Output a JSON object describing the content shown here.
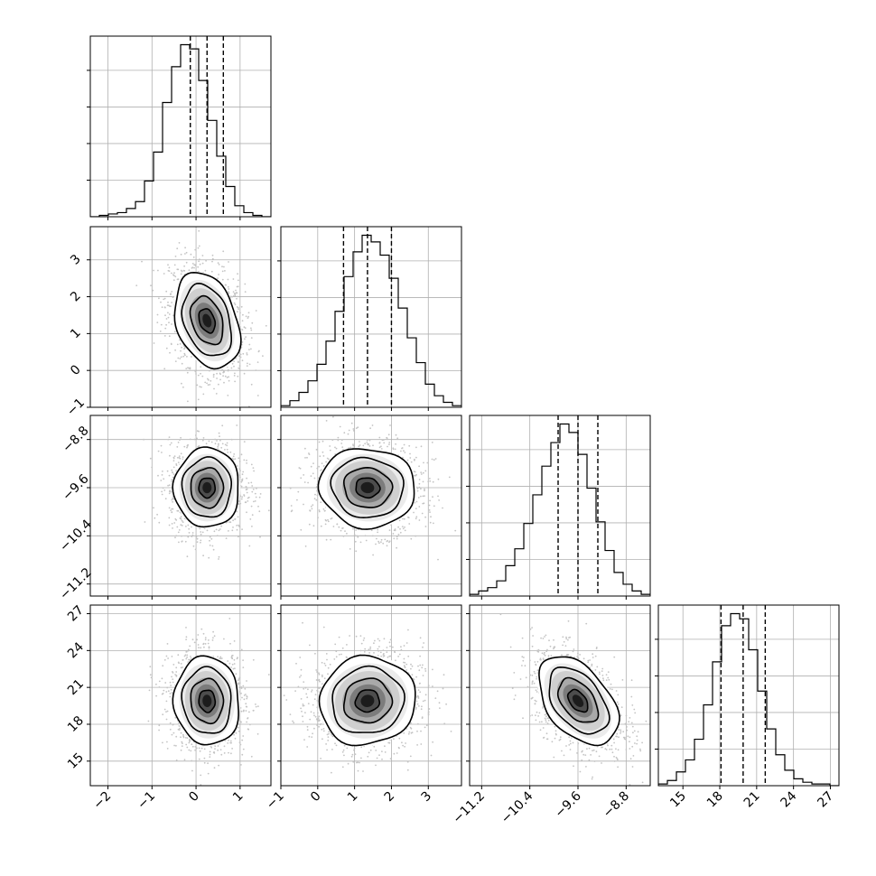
{
  "chart_data": {
    "type": "corner",
    "title": "",
    "grid": true,
    "parameters": [
      {
        "name": "",
        "mean": 0.25,
        "sd": 0.37,
        "quantiles": [
          -0.13,
          0.25,
          0.62
        ],
        "range": [
          -2.4,
          1.7
        ],
        "ticks": [
          -2,
          -1,
          0,
          1
        ],
        "tick_labels": [
          "−2",
          "−1",
          "0",
          "1"
        ]
      },
      {
        "name": "",
        "mean": 1.35,
        "sd": 0.65,
        "quantiles": [
          0.7,
          1.35,
          2.0
        ],
        "range": [
          -1.0,
          3.9
        ],
        "ticks": [
          -1,
          0,
          1,
          2,
          3
        ],
        "tick_labels": [
          "−1",
          "0",
          "1",
          "2",
          "3"
        ]
      },
      {
        "name": "",
        "mean": -9.6,
        "sd": 0.33,
        "quantiles": [
          -9.93,
          -9.6,
          -9.27
        ],
        "range": [
          -11.4,
          -8.4
        ],
        "ticks": [
          -11.2,
          -10.4,
          -9.6,
          -8.8
        ],
        "tick_labels": [
          "−11.2",
          "−10.4",
          "−9.6",
          "−8.8"
        ]
      },
      {
        "name": "",
        "mean": 19.9,
        "sd": 1.8,
        "quantiles": [
          18.1,
          19.9,
          21.7
        ],
        "range": [
          13.0,
          27.7
        ],
        "ticks": [
          15,
          18,
          21,
          24,
          27
        ],
        "tick_labels": [
          "15",
          "18",
          "21",
          "24",
          "27"
        ]
      }
    ],
    "histograms": [
      {
        "param": 0,
        "bin_start": -2.4,
        "bin_width": 0.205,
        "counts": [
          0,
          1,
          2,
          3,
          6,
          11,
          26,
          47,
          83,
          109,
          125,
          122,
          99,
          70,
          44,
          22,
          8,
          3,
          1,
          0
        ]
      },
      {
        "param": 1,
        "bin_start": -1.0,
        "bin_width": 0.245,
        "counts": [
          1,
          4,
          9,
          16,
          26,
          40,
          58,
          79,
          94,
          104,
          100,
          92,
          78,
          60,
          42,
          27,
          14,
          7,
          3,
          1
        ]
      },
      {
        "param": 2,
        "bin_start": -11.4,
        "bin_width": 0.15,
        "counts": [
          1,
          3,
          5,
          9,
          18,
          28,
          43,
          60,
          77,
          91,
          102,
          97,
          84,
          64,
          44,
          27,
          14,
          7,
          3,
          1
        ]
      },
      {
        "param": 3,
        "bin_start": 13.0,
        "bin_width": 0.735,
        "counts": [
          1,
          3,
          8,
          15,
          27,
          47,
          72,
          93,
          100,
          97,
          79,
          55,
          33,
          18,
          9,
          4,
          2,
          1,
          1,
          0
        ]
      }
    ],
    "pairs": [
      {
        "x": 0,
        "y": 1,
        "corr": -0.3
      },
      {
        "x": 0,
        "y": 2,
        "corr": 0.0
      },
      {
        "x": 1,
        "y": 2,
        "corr": -0.05
      },
      {
        "x": 0,
        "y": 3,
        "corr": -0.05
      },
      {
        "x": 1,
        "y": 3,
        "corr": 0.05
      },
      {
        "x": 2,
        "y": 3,
        "corr": -0.45
      }
    ],
    "contour_levels_sigma": [
      0.5,
      1.0,
      1.5,
      2.0
    ]
  }
}
